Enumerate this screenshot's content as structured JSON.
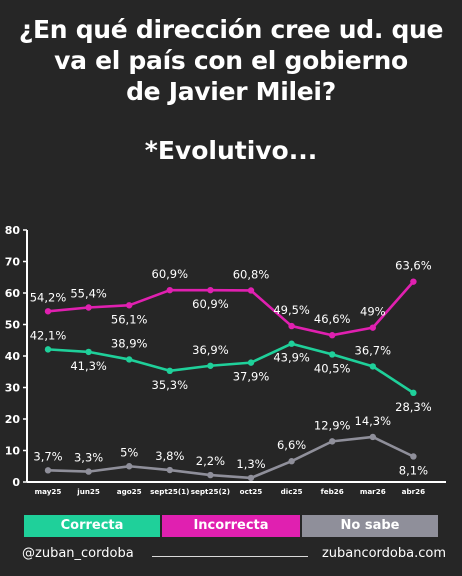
{
  "header": {
    "title_lines": [
      "¿En qué dirección cree ud. que",
      "va el país con el gobierno",
      "de Javier Milei?"
    ],
    "subtitle": "*Evolutivo..."
  },
  "chart_data": {
    "type": "line",
    "categories": [
      "may25",
      "jun25",
      "ago25",
      "sept25(1)",
      "sept25(2)",
      "oct25",
      "dic25",
      "feb26",
      "mar26",
      "abr26"
    ],
    "ylim": [
      0,
      80
    ],
    "yticks": [
      0,
      10,
      20,
      30,
      40,
      50,
      60,
      70,
      80
    ],
    "grid": false,
    "series": [
      {
        "name": "Incorrecta",
        "color": "#e020b0",
        "values": [
          54.2,
          55.4,
          56.1,
          60.9,
          60.9,
          60.8,
          49.5,
          46.6,
          49.0,
          63.6
        ],
        "labels": [
          "54,2%",
          "55,4%",
          "56,1%",
          "60,9%",
          "60,9%",
          "60,8%",
          "49,5%",
          "46,6%",
          "49%",
          "63,6%"
        ]
      },
      {
        "name": "Correcta",
        "color": "#1fd09a",
        "values": [
          42.1,
          41.3,
          38.9,
          35.3,
          36.9,
          37.9,
          43.9,
          40.5,
          36.7,
          28.3
        ],
        "labels": [
          "42,1%",
          "41,3%",
          "38,9%",
          "35,3%",
          "36,9%",
          "37,9%",
          "43,9%",
          "40,5%",
          "36,7%",
          "28,3%"
        ]
      },
      {
        "name": "No sabe",
        "color": "#8f8f9a",
        "values": [
          3.7,
          3.3,
          5.0,
          3.8,
          2.2,
          1.3,
          6.6,
          12.9,
          14.3,
          8.1
        ],
        "labels": [
          "3,7%",
          "3,3%",
          "5%",
          "3,8%",
          "2,2%",
          "1,3%",
          "6,6%",
          "12,9%",
          "14,3%",
          "8,1%"
        ]
      }
    ]
  },
  "legend": [
    {
      "label": "Correcta",
      "color": "#1fd09a"
    },
    {
      "label": "Incorrecta",
      "color": "#e020b0"
    },
    {
      "label": "No sabe",
      "color": "#8f8f9a"
    }
  ],
  "footer": {
    "handle": "@zuban_cordoba",
    "site": "zubancordoba.com"
  },
  "colors": {
    "background": "#262626",
    "axis": "#ffffff"
  }
}
